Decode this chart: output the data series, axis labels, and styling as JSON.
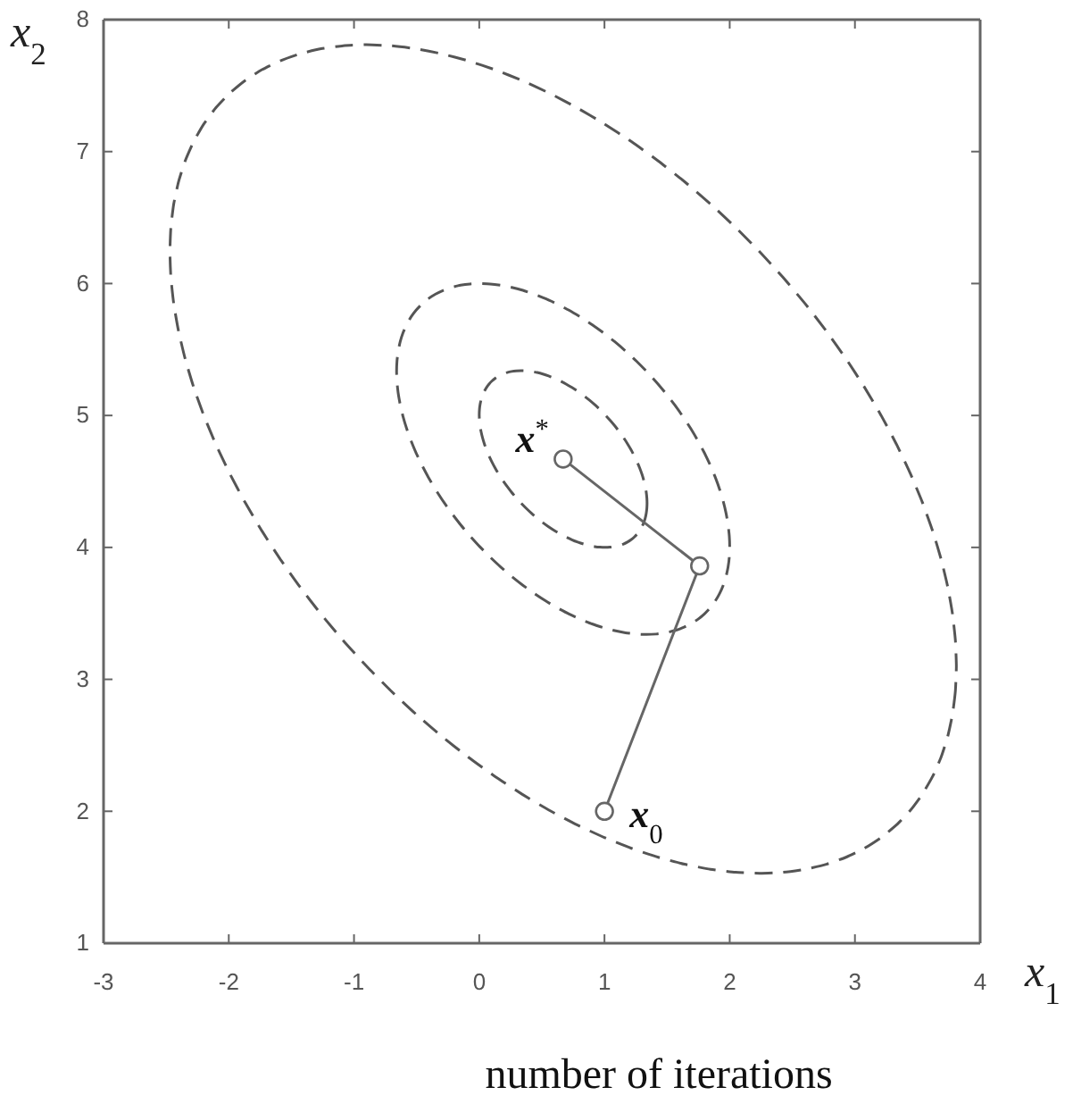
{
  "chart_data": {
    "type": "line",
    "xlabel": "x$_{1}$",
    "ylabel": "x$_{2}$",
    "xlim": [
      -3,
      4
    ],
    "ylim": [
      1,
      8
    ],
    "xticks": [
      -3,
      -2,
      -1,
      0,
      1,
      2,
      3,
      4
    ],
    "yticks": [
      1,
      2,
      3,
      4,
      5,
      6,
      7,
      8
    ],
    "series": [
      {
        "color": "#666666",
        "line_style": "solid",
        "marker": "circle",
        "x": [
          1,
          1.76,
          0.67
        ],
        "values": [
          2,
          3.86,
          4.67
        ]
      }
    ],
    "annotations": [
      {
        "text": "x$^{*}$",
        "x": 0.67,
        "y": 4.67
      },
      {
        "text": "x$_{0}$",
        "x": 1,
        "y": 2
      },
      "number of iterations"
    ]
  }
}
